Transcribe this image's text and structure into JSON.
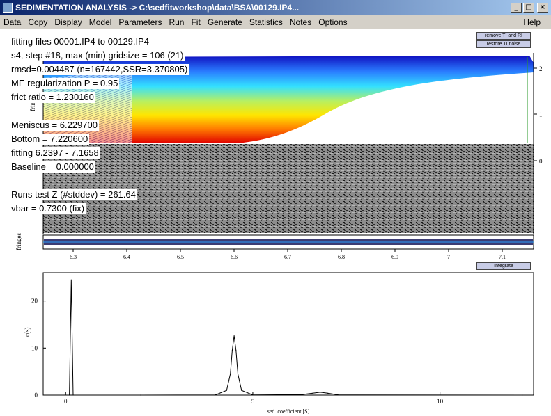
{
  "window": {
    "title": "SEDIMENTATION ANALYSIS -> C:\\sedfitworkshop\\data\\BSA\\00129.IP4...",
    "minimize": "_",
    "maximize": "□",
    "close": "×"
  },
  "menu": {
    "items": [
      "Data",
      "Copy",
      "Display",
      "Model",
      "Parameters",
      "Run",
      "Fit",
      "Generate",
      "Statistics",
      "Notes",
      "Options"
    ],
    "help": "Help"
  },
  "buttons": {
    "remove_ti_ri": "remove TI and RI",
    "restore_ti_noise": "restore TI noise",
    "integrate": "Integrate"
  },
  "info": {
    "fitting_files": "fitting files 00001.IP4 to 00129.IP4",
    "step": "s4, step #18, max (min) gridsize = 106 (21)",
    "rmsd": "rmsd=0.004487 (n=167442,SSR=3.370805)",
    "regularization": "ME regularization P = 0.95",
    "frict": "frict ratio = 1.230160",
    "meniscus": "Meniscus = 6.229700",
    "bottom": "Bottom = 7.220600",
    "fitting_range": "fitting 6.2397 - 7.1658",
    "baseline": "Baseline = 0.000000",
    "runs_test": "Runs test Z (#stddev) = 261.64",
    "vbar": "vbar = 0.7300 (fix)"
  },
  "top_plot": {
    "ylabel": "fringe",
    "right_ticks": [
      "2",
      "1",
      "0"
    ]
  },
  "residual_plot": {
    "ylabel": "fringes",
    "xticks": [
      "6.3",
      "6.4",
      "6.5",
      "6.6",
      "6.7",
      "6.8",
      "6.9",
      "7",
      "7.1"
    ]
  },
  "chart_data": {
    "type": "line",
    "title": "",
    "xlabel": "sed. coefficient [S]",
    "ylabel": "c(s)",
    "xlim": [
      -0.6,
      12.5
    ],
    "ylim": [
      0,
      26
    ],
    "xticks": [
      0,
      5,
      10
    ],
    "yticks": [
      0,
      10,
      20
    ],
    "series": [
      {
        "name": "",
        "points": [
          [
            0.1,
            0
          ],
          [
            0.15,
            24.5
          ],
          [
            0.2,
            0
          ],
          [
            2,
            0
          ],
          [
            4,
            0.05
          ],
          [
            4.3,
            1.0
          ],
          [
            4.4,
            4.5
          ],
          [
            4.45,
            9.5
          ],
          [
            4.5,
            12.6
          ],
          [
            4.55,
            9.5
          ],
          [
            4.6,
            4.5
          ],
          [
            4.7,
            1.0
          ],
          [
            5.0,
            0.05
          ],
          [
            6.3,
            0.1
          ],
          [
            6.6,
            0.4
          ],
          [
            6.8,
            0.6
          ],
          [
            7.0,
            0.4
          ],
          [
            7.3,
            0.05
          ],
          [
            12.2,
            0
          ]
        ]
      }
    ]
  }
}
